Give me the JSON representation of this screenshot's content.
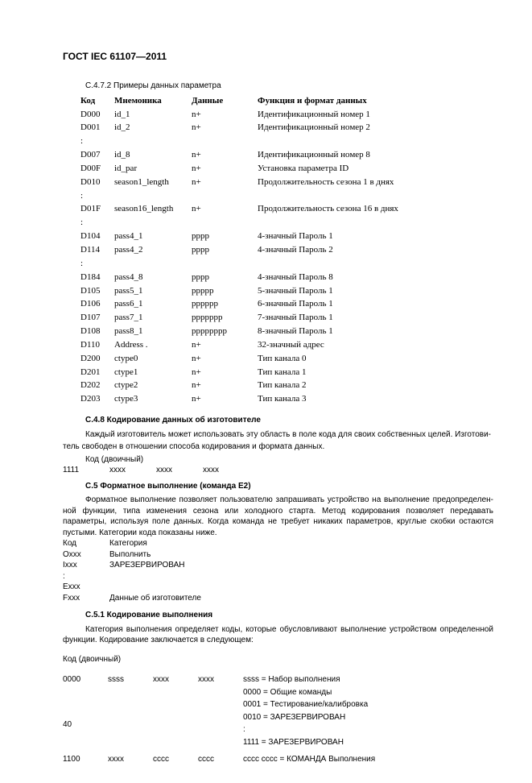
{
  "docHeader": "ГОСТ IEC 61107—2011",
  "sec472": "С.4.7.2 Примеры данных параметра",
  "tbl472": {
    "headers": [
      "Код",
      "Мнемоника",
      "Данные",
      "Функция и формат данных"
    ],
    "rows": [
      [
        "D000",
        "id_1",
        "n+",
        "Идентификационный номер 1"
      ],
      [
        "D001",
        "id_2",
        "n+",
        "Идентификационный номер 2"
      ],
      [
        ":",
        "",
        "",
        ""
      ],
      [
        "D007",
        "id_8",
        "n+",
        "Идентификационный номер 8"
      ],
      [
        "D00F",
        "id_par",
        "n+",
        "Установка параметра ID"
      ],
      [
        "D010",
        "season1_length",
        "n+",
        "Продолжительность сезона 1 в днях"
      ],
      [
        ":",
        "",
        "",
        ""
      ],
      [
        "D01F",
        "season16_length",
        "n+",
        "Продолжительность сезона 16 в днях"
      ],
      [
        ":",
        "",
        "",
        ""
      ],
      [
        "D104",
        "pass4_1",
        "pppp",
        "4-значный Пароль 1"
      ],
      [
        "D114",
        "pass4_2",
        "pppp",
        "4-значный Пароль 2"
      ],
      [
        ":",
        "",
        "",
        ""
      ],
      [
        "D184",
        "pass4_8",
        "pppp",
        "4-значный Пароль 8"
      ],
      [
        "D105",
        "pass5_1",
        "ppppp",
        "5-значный Пароль 1"
      ],
      [
        "D106",
        "pass6_1",
        "pppppp",
        "6-значный Пароль 1"
      ],
      [
        "D107",
        "pass7_1",
        "ppppppp",
        "7-значный Пароль 1"
      ],
      [
        "D108",
        "pass8_1",
        "pppppppp",
        "8-значный Пароль 1"
      ],
      [
        "D110",
        "Address   .",
        "n+",
        "32-значный адрес"
      ],
      [
        "D200",
        "ctype0",
        "n+",
        "Тип канала 0"
      ],
      [
        "D201",
        "ctype1",
        "n+",
        "Тип канала 1"
      ],
      [
        "D202",
        "ctype2",
        "n+",
        "Тип канала 2"
      ],
      [
        "D203",
        "ctype3",
        "n+",
        "Тип канала 3"
      ]
    ]
  },
  "sec478": {
    "title": "С.4.8 Кодирование данных об изготовителе",
    "p1a": "Каждый изготовитель может использовать эту область в поле кода для своих собственных целей. Изготови-",
    "p1b": "тель свободен в отношении способа кодирования и формата данных.",
    "codeLabel": "Код (двоичный)",
    "codeRow": [
      "1111",
      "xxxx",
      "xxxx",
      "xxxx"
    ]
  },
  "sec5": {
    "title": "С.5 Форматное выполнение (команда E2)",
    "p1": "Форматное выполнение позволяет пользователю запрашивать устройство на выполнение предопределен­ной функции, типа изменения сезона или холодного старта. Метод кодирования позволяет передавать параметры, используя поле данных. Когда команда не требует никаких параметров, круглые скобки остаются пустыми. Катего­рии кода показаны ниже.",
    "catHeader": [
      "Код",
      "Категория"
    ],
    "cats": [
      [
        "Oxxx",
        "Выполнить"
      ],
      [
        "Ixxx",
        "ЗАРЕЗЕРВИРОВАН"
      ],
      [
        ":",
        ""
      ],
      [
        "Exxx",
        ""
      ],
      [
        "Fxxx",
        "Данные об изготовителе"
      ]
    ]
  },
  "sec51": {
    "title": "С.5.1 Кодирование выполнения",
    "p1": "Категория выполнения определяет коды, которые обусловливают выполнение устройством определенной функции. Кодирование заключается в следующем:",
    "codeLabel": "Код (двоичный)",
    "rows": [
      {
        "cells": [
          "0000",
          "ssss",
          "xxxx",
          "xxxx"
        ],
        "right": "ssss = Набор выполнения"
      },
      {
        "cells": [
          "",
          "",
          "",
          ""
        ],
        "right": "0000 = Общие команды"
      },
      {
        "cells": [
          "",
          "",
          "",
          ""
        ],
        "right": "0001 = Тестирование/калибровка"
      },
      {
        "cells": [
          "",
          "",
          "",
          ""
        ],
        "right": "0010 = ЗАРЕЗЕРВИРОВАН"
      },
      {
        "cells": [
          "",
          "",
          "",
          ""
        ],
        "right": ":"
      },
      {
        "cells": [
          "",
          "",
          "",
          ""
        ],
        "right": "1111 = ЗАРЕЗЕРВИРОВАН"
      },
      {
        "cells": [
          "1100",
          "xxxx",
          "cccc",
          "cccc"
        ],
        "right": "cccc cccc = КОМАНДА Выполнения"
      }
    ]
  },
  "pageNumber": "40"
}
